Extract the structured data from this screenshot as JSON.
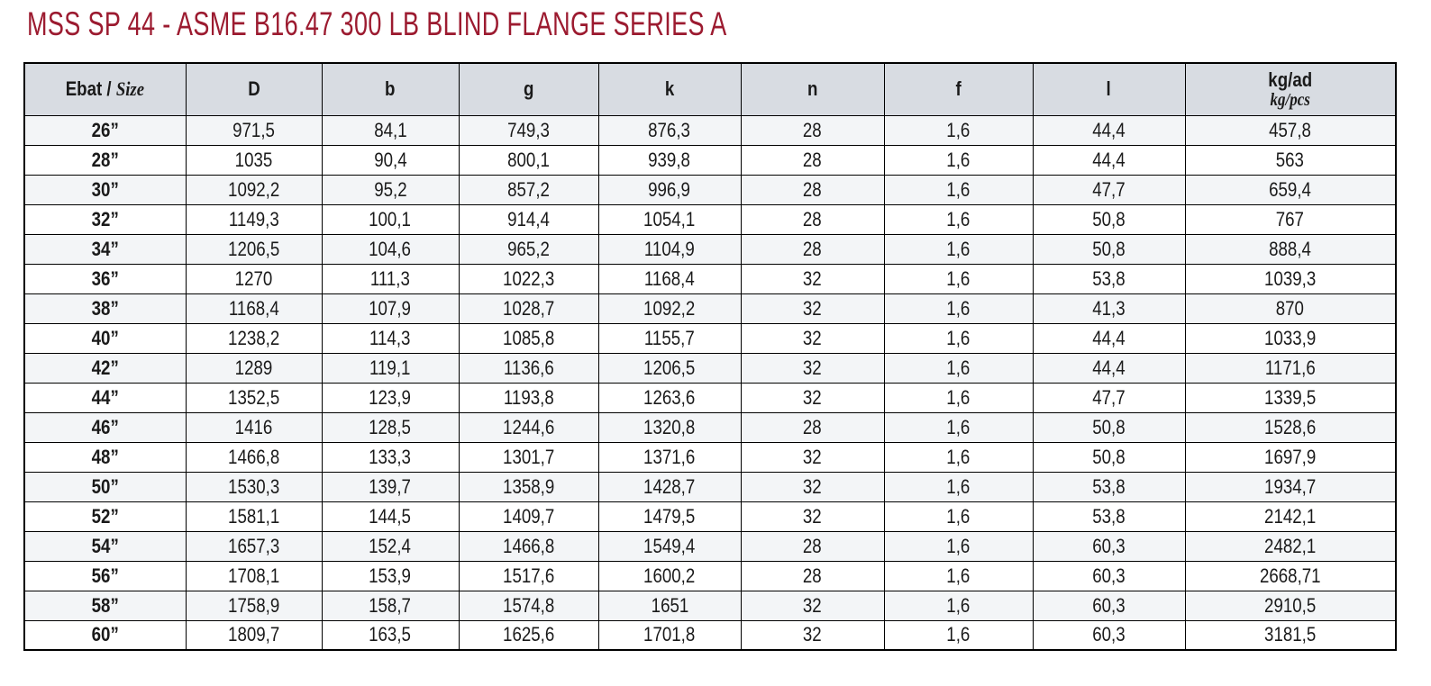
{
  "page": {
    "title": "MSS SP 44 - ASME B16.47 300 LB BLIND FLANGE SERIES A"
  },
  "colors": {
    "title_red": "#9c1b30",
    "header_bg": "#d8dce2",
    "stripe_bg": "#f3f5f7",
    "border": "#000000"
  },
  "table": {
    "header": {
      "size_label": "Ebat /",
      "size_label_italic": "Size",
      "measure_cols": [
        "D",
        "b",
        "g",
        "k",
        "n",
        "f",
        "l"
      ],
      "weight_label": "kg/ad",
      "weight_sub": "kg/pcs"
    },
    "rows": [
      {
        "size": "26”",
        "D": "971,5",
        "b": "84,1",
        "g": "749,3",
        "k": "876,3",
        "n": "28",
        "f": "1,6",
        "l": "44,4",
        "kg": "457,8"
      },
      {
        "size": "28”",
        "D": "1035",
        "b": "90,4",
        "g": "800,1",
        "k": "939,8",
        "n": "28",
        "f": "1,6",
        "l": "44,4",
        "kg": "563"
      },
      {
        "size": "30”",
        "D": "1092,2",
        "b": "95,2",
        "g": "857,2",
        "k": "996,9",
        "n": "28",
        "f": "1,6",
        "l": "47,7",
        "kg": "659,4"
      },
      {
        "size": "32”",
        "D": "1149,3",
        "b": "100,1",
        "g": "914,4",
        "k": "1054,1",
        "n": "28",
        "f": "1,6",
        "l": "50,8",
        "kg": "767"
      },
      {
        "size": "34”",
        "D": "1206,5",
        "b": "104,6",
        "g": "965,2",
        "k": "1104,9",
        "n": "28",
        "f": "1,6",
        "l": "50,8",
        "kg": "888,4"
      },
      {
        "size": "36”",
        "D": "1270",
        "b": "111,3",
        "g": "1022,3",
        "k": "1168,4",
        "n": "32",
        "f": "1,6",
        "l": "53,8",
        "kg": "1039,3"
      },
      {
        "size": "38”",
        "D": "1168,4",
        "b": "107,9",
        "g": "1028,7",
        "k": "1092,2",
        "n": "32",
        "f": "1,6",
        "l": "41,3",
        "kg": "870"
      },
      {
        "size": "40”",
        "D": "1238,2",
        "b": "114,3",
        "g": "1085,8",
        "k": "1155,7",
        "n": "32",
        "f": "1,6",
        "l": "44,4",
        "kg": "1033,9"
      },
      {
        "size": "42”",
        "D": "1289",
        "b": "119,1",
        "g": "1136,6",
        "k": "1206,5",
        "n": "32",
        "f": "1,6",
        "l": "44,4",
        "kg": "1171,6"
      },
      {
        "size": "44”",
        "D": "1352,5",
        "b": "123,9",
        "g": "1193,8",
        "k": "1263,6",
        "n": "32",
        "f": "1,6",
        "l": "47,7",
        "kg": "1339,5"
      },
      {
        "size": "46”",
        "D": "1416",
        "b": "128,5",
        "g": "1244,6",
        "k": "1320,8",
        "n": "28",
        "f": "1,6",
        "l": "50,8",
        "kg": "1528,6"
      },
      {
        "size": "48”",
        "D": "1466,8",
        "b": "133,3",
        "g": "1301,7",
        "k": "1371,6",
        "n": "32",
        "f": "1,6",
        "l": "50,8",
        "kg": "1697,9"
      },
      {
        "size": "50”",
        "D": "1530,3",
        "b": "139,7",
        "g": "1358,9",
        "k": "1428,7",
        "n": "32",
        "f": "1,6",
        "l": "53,8",
        "kg": "1934,7"
      },
      {
        "size": "52”",
        "D": "1581,1",
        "b": "144,5",
        "g": "1409,7",
        "k": "1479,5",
        "n": "32",
        "f": "1,6",
        "l": "53,8",
        "kg": "2142,1"
      },
      {
        "size": "54”",
        "D": "1657,3",
        "b": "152,4",
        "g": "1466,8",
        "k": "1549,4",
        "n": "28",
        "f": "1,6",
        "l": "60,3",
        "kg": "2482,1"
      },
      {
        "size": "56”",
        "D": "1708,1",
        "b": "153,9",
        "g": "1517,6",
        "k": "1600,2",
        "n": "28",
        "f": "1,6",
        "l": "60,3",
        "kg": "2668,71"
      },
      {
        "size": "58”",
        "D": "1758,9",
        "b": "158,7",
        "g": "1574,8",
        "k": "1651",
        "n": "32",
        "f": "1,6",
        "l": "60,3",
        "kg": "2910,5"
      },
      {
        "size": "60”",
        "D": "1809,7",
        "b": "163,5",
        "g": "1625,6",
        "k": "1701,8",
        "n": "32",
        "f": "1,6",
        "l": "60,3",
        "kg": "3181,5"
      }
    ]
  }
}
